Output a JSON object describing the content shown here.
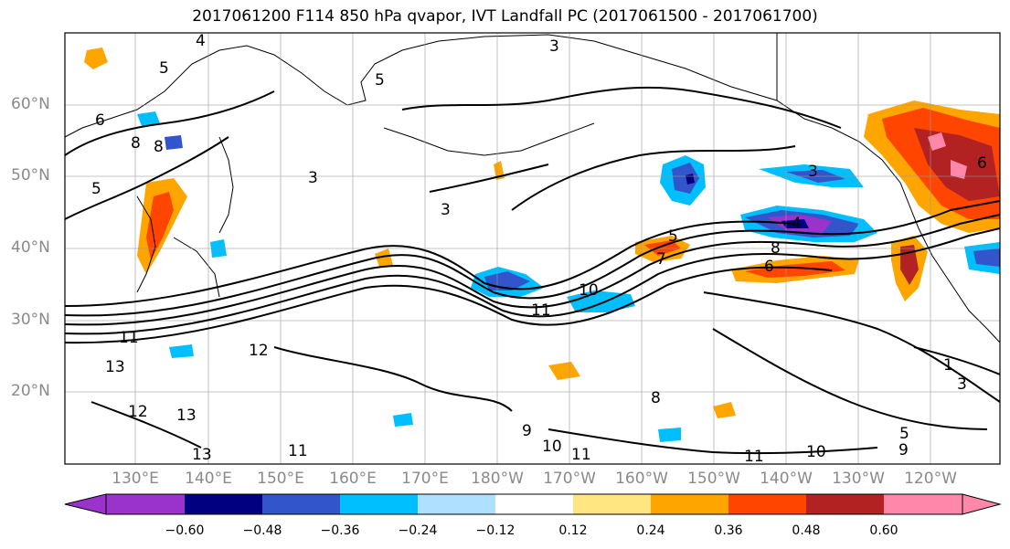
{
  "figure": {
    "title": "2017061200 F114 850 hPa qvapor, IVT Landfall PC (2017061500 - 2017061700)"
  },
  "map": {
    "projection": "plate-carree",
    "lat_labels": [
      "60°N",
      "50°N",
      "40°N",
      "30°N",
      "20°N"
    ],
    "lon_labels": [
      "130°E",
      "140°E",
      "150°E",
      "160°E",
      "170°E",
      "180°W",
      "170°W",
      "160°W",
      "150°W",
      "140°W",
      "130°W",
      "120°W"
    ],
    "contour_labels": [
      "4",
      "5",
      "5",
      "6",
      "8",
      "8",
      "3",
      "3",
      "3",
      "5",
      "6",
      "7",
      "8",
      "10",
      "11",
      "11",
      "12",
      "13",
      "13",
      "13",
      "12",
      "9",
      "8",
      "10",
      "11",
      "11",
      "11",
      "10",
      "9",
      "5",
      "6",
      "4",
      "3",
      "1",
      "3",
      "5"
    ]
  },
  "colorbar": {
    "ticks": [
      "−0.60",
      "−0.48",
      "−0.36",
      "−0.24",
      "−0.12",
      "0.12",
      "0.24",
      "0.36",
      "0.48",
      "0.60"
    ],
    "colors": [
      "#9933cc",
      "#000080",
      "#3355cc",
      "#00bfff",
      "#b0e0ff",
      "#ffffff",
      "#ffe680",
      "#ffa500",
      "#ff4500",
      "#b22222",
      "#ff88aa"
    ]
  }
}
